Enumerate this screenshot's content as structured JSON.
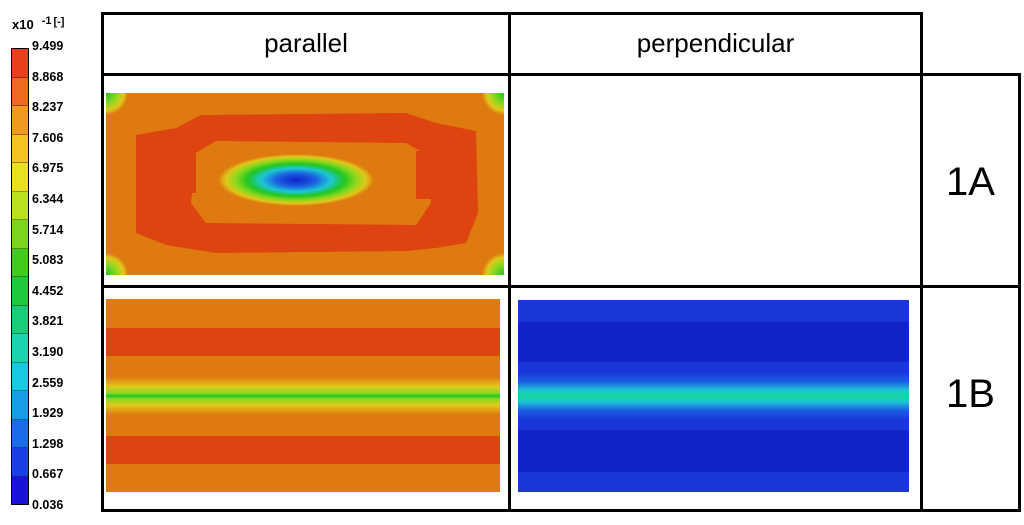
{
  "legend": {
    "multiplier": "x10",
    "exponent": "-1",
    "unit": "[-]",
    "ticks": [
      "9.499",
      "8.868",
      "8.237",
      "7.606",
      "6.975",
      "6.344",
      "5.714",
      "5.083",
      "4.452",
      "3.821",
      "3.190",
      "2.559",
      "1.929",
      "1.298",
      "0.667",
      "0.036"
    ],
    "colors": [
      "#e8401c",
      "#ef6a1e",
      "#f09a1f",
      "#f4c320",
      "#e8e021",
      "#b9e21e",
      "#7cd51d",
      "#3fcc1f",
      "#1fc93c",
      "#18cc7a",
      "#1cd3b0",
      "#18c9e2",
      "#189ee7",
      "#1a6de8",
      "#1a3fe6",
      "#1a12d8"
    ]
  },
  "table": {
    "headers": [
      "parallel",
      "perpendicular"
    ],
    "rows": [
      "1A",
      "1B"
    ]
  },
  "plots": {
    "colors": {
      "orange": "#de7a10",
      "red": "#dd4410",
      "green": "#22c622",
      "light_green": "#8fd81e",
      "yellow": "#e0c81a",
      "cyan": "#1cc7d6",
      "teal": "#14d59a",
      "blue": "#1a36d8",
      "dark_blue": "#1124c9",
      "mid_blue": "#1a5ee0"
    }
  }
}
